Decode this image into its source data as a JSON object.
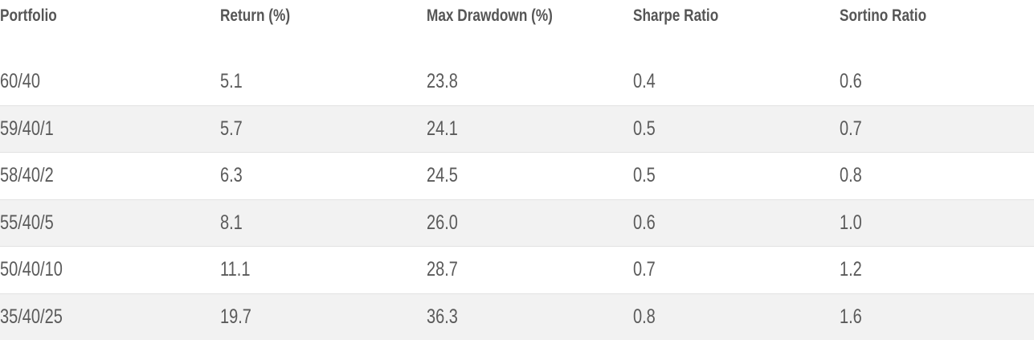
{
  "table": {
    "header": [
      "Portfolio",
      "Return (%)",
      "Max Drawdown (%)",
      "Sharpe Ratio",
      "Sortino Ratio"
    ],
    "rows": [
      [
        "60/40",
        "5.1",
        "23.8",
        "0.4",
        "0.6"
      ],
      [
        "59/40/1",
        "5.7",
        "24.1",
        "0.5",
        "0.7"
      ],
      [
        "58/40/2",
        "6.3",
        "24.5",
        "0.5",
        "0.8"
      ],
      [
        "55/40/5",
        "8.1",
        "26.0",
        "0.6",
        "1.0"
      ],
      [
        "50/40/10",
        "11.1",
        "28.7",
        "0.7",
        "1.2"
      ],
      [
        "35/40/25",
        "19.7",
        "36.3",
        "0.8",
        "1.6"
      ]
    ]
  }
}
